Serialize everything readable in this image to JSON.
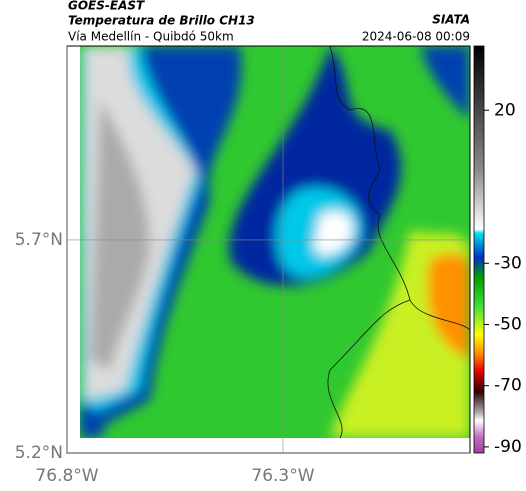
{
  "header": {
    "title": "GOES-EAST",
    "subtitle": "Temperatura de Brillo CH13",
    "caption": "Vía Medellín - Quibdó 50km",
    "source": "SIATA",
    "timestamp": "2024-06-08 00:09"
  },
  "map": {
    "xlim": [
      -76.8,
      -75.867
    ],
    "ylim": [
      5.2,
      6.155
    ],
    "xticks": [
      {
        "value": -76.8,
        "label": "76.8°W"
      },
      {
        "value": -76.3,
        "label": "76.3°W"
      }
    ],
    "yticks": [
      {
        "value": 5.2,
        "label": "5.2°N"
      },
      {
        "value": 5.7,
        "label": "5.7°N"
      }
    ]
  },
  "colorbar": {
    "lim": [
      -92,
      41
    ],
    "ticks": [
      20,
      -30,
      -50,
      -70,
      -90
    ]
  }
}
